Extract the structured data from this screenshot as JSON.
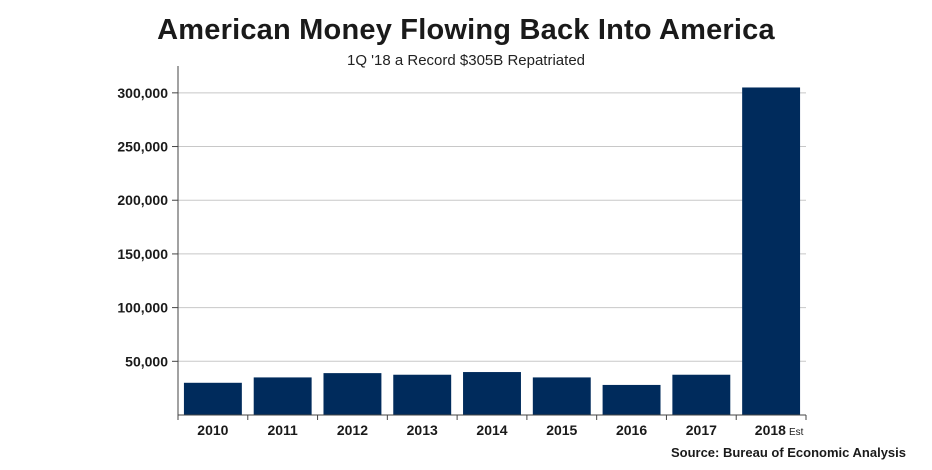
{
  "chart_data": {
    "type": "bar",
    "title": "American Money Flowing Back Into America",
    "subtitle": "1Q '18 a Record $305B Repatriated",
    "categories": [
      "2010",
      "2011",
      "2012",
      "2013",
      "2014",
      "2015",
      "2016",
      "2017",
      "2018"
    ],
    "category_suffixes": [
      "",
      "",
      "",
      "",
      "",
      "",
      "",
      "",
      "Est"
    ],
    "values": [
      30000,
      35000,
      39000,
      37500,
      40000,
      35000,
      28000,
      37500,
      305000
    ],
    "yticks": [
      50000,
      100000,
      150000,
      200000,
      250000,
      300000
    ],
    "ytick_labels": [
      "50,000",
      "100,000",
      "150,000",
      "200,000",
      "250,000",
      "300,000"
    ],
    "ylim": [
      0,
      325000
    ],
    "xlabel": "",
    "ylabel": "",
    "grid": true,
    "bar_color": "#002b5c",
    "source": "Source: Bureau of Economic Analysis"
  }
}
